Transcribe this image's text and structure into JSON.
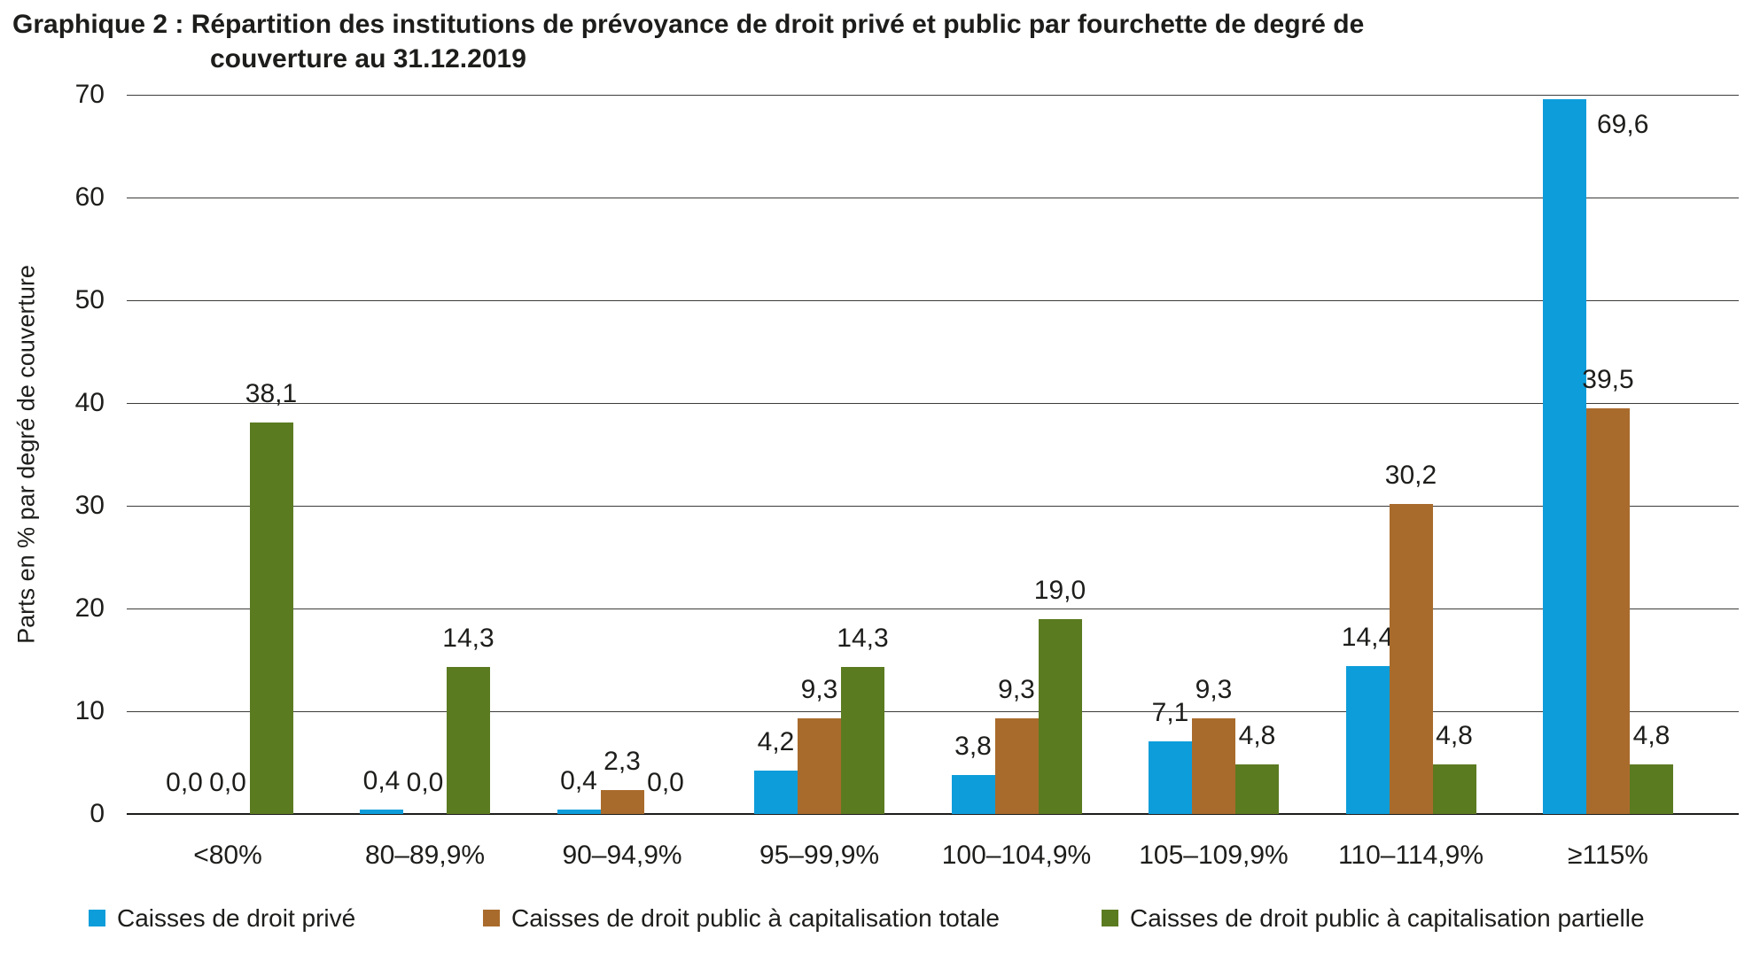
{
  "chart_data": {
    "type": "bar",
    "title_lines": [
      "Graphique 2 : Répartition des institutions de prévoyance de droit privé et public par fourchette de degré de",
      "couverture au 31.12.2019"
    ],
    "ylabel": "Parts en % par degré de couverture",
    "ylim": [
      0,
      70
    ],
    "yticks": [
      0,
      10,
      20,
      30,
      40,
      50,
      60,
      70
    ],
    "grid": true,
    "legend_position": "bottom",
    "decimal_separator": ",",
    "categories": [
      "<80%",
      "80–89,9%",
      "90–94,9%",
      "95–99,9%",
      "100–104,9%",
      "105–109,9%",
      "110–114,9%",
      "≥115%"
    ],
    "series": [
      {
        "name": "Caisses de droit privé",
        "color": "#0d9ddb",
        "values": [
          0.0,
          0.4,
          0.4,
          4.2,
          3.8,
          7.1,
          14.4,
          69.6
        ],
        "labels": [
          "0,0",
          "0,4",
          "0,4",
          "4,2",
          "3,8",
          "7,1",
          "14,4",
          "69,6"
        ]
      },
      {
        "name": "Caisses de droit public à capitalisation totale",
        "color": "#a96b2c",
        "values": [
          0.0,
          0.0,
          2.3,
          9.3,
          9.3,
          9.3,
          30.2,
          39.5
        ],
        "labels": [
          "0,0",
          "0,0",
          "2,3",
          "9,3",
          "9,3",
          "9,3",
          "30,2",
          "39,5"
        ]
      },
      {
        "name": "Caisses de droit public à capitalisation partielle",
        "color": "#5b7b21",
        "values": [
          38.1,
          14.3,
          0.0,
          14.3,
          19.0,
          4.8,
          4.8,
          4.8
        ],
        "labels": [
          "38,1",
          "14,3",
          "0,0",
          "14,3",
          "19,0",
          "4,8",
          "4,8",
          "4,8"
        ]
      }
    ]
  }
}
